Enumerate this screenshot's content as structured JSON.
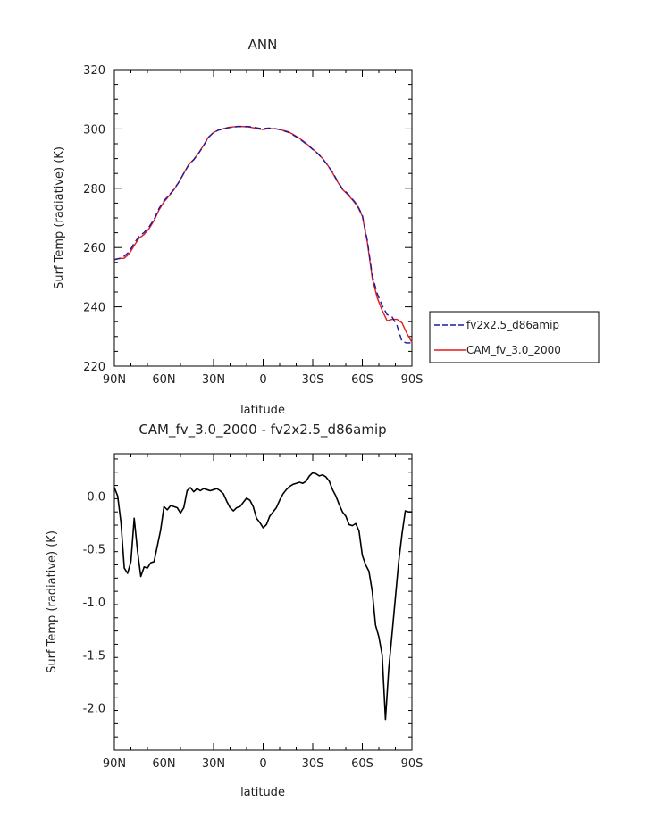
{
  "chart_data": [
    {
      "type": "line",
      "title": "ANN",
      "xlabel": "latitude",
      "ylabel": "Surf Temp (radiative) (K)",
      "x_ticks": [
        "90N",
        "60N",
        "30N",
        "0",
        "30S",
        "60S",
        "90S"
      ],
      "x": [
        -90,
        -87,
        -84,
        -81,
        -78,
        -75,
        -72,
        -69,
        -66,
        -63,
        -60,
        -57,
        -54,
        -51,
        -48,
        -45,
        -42,
        -39,
        -36,
        -33,
        -30,
        -27,
        -24,
        -21,
        -18,
        -15,
        -12,
        -9,
        -6,
        -3,
        0,
        3,
        6,
        9,
        12,
        15,
        18,
        21,
        24,
        27,
        30,
        33,
        36,
        39,
        42,
        45,
        48,
        51,
        54,
        57,
        60,
        63,
        66,
        69,
        72,
        75,
        78,
        81,
        84,
        87,
        90
      ],
      "ylim": [
        220,
        320
      ],
      "y_ticks": [
        220,
        240,
        260,
        280,
        300,
        320
      ],
      "legend_position": "right",
      "series": [
        {
          "name": "fv2x2.5_d86amip",
          "color": "#1a1aa0",
          "dash": true,
          "values": [
            255.9,
            256.3,
            257.1,
            258.6,
            261.5,
            263.8,
            265.1,
            267.0,
            269.5,
            273.2,
            275.8,
            277.6,
            279.6,
            282.1,
            285.0,
            287.9,
            289.6,
            291.8,
            294.4,
            297.2,
            298.8,
            299.6,
            300.0,
            300.4,
            300.6,
            300.8,
            300.8,
            300.8,
            300.6,
            300.3,
            300.1,
            300.3,
            300.2,
            299.9,
            299.4,
            298.9,
            298.0,
            297.0,
            295.8,
            294.5,
            293.1,
            291.7,
            289.9,
            287.8,
            285.4,
            282.4,
            279.8,
            278.3,
            276.4,
            274.3,
            270.9,
            262.5,
            250.7,
            244.5,
            240.4,
            237.4,
            236.6,
            233.7,
            228.3,
            227.8,
            227.9
          ]
        },
        {
          "name": "CAM_fv_3.0_2000",
          "color": "#e41a1a",
          "dash": false,
          "values": [
            256.0,
            256.3,
            256.4,
            257.9,
            260.7,
            263.2,
            264.4,
            266.4,
            269.1,
            272.7,
            275.4,
            277.4,
            279.5,
            282.0,
            285.1,
            288.0,
            289.7,
            291.9,
            294.5,
            297.3,
            298.8,
            299.6,
            300.1,
            300.5,
            300.7,
            300.9,
            300.8,
            300.7,
            300.4,
            300.0,
            299.8,
            300.1,
            300.1,
            299.9,
            299.5,
            299.1,
            298.2,
            297.2,
            296.0,
            294.7,
            293.2,
            291.8,
            290.0,
            287.8,
            285.2,
            282.2,
            279.6,
            278.0,
            276.1,
            274.0,
            270.6,
            261.9,
            249.7,
            243.1,
            238.8,
            235.3,
            235.8,
            235.8,
            234.6,
            231.0,
            228.0
          ]
        }
      ]
    },
    {
      "type": "line",
      "title": "CAM_fv_3.0_2000 - fv2x2.5_d86amip",
      "xlabel": "latitude",
      "ylabel": "Surf Temp (radiative) (K)",
      "x_ticks": [
        "90N",
        "60N",
        "30N",
        "0",
        "30S",
        "60S",
        "90S"
      ],
      "x": [
        -90,
        -88,
        -86,
        -84,
        -82,
        -80,
        -78,
        -76,
        -74,
        -72,
        -70,
        -68,
        -66,
        -64,
        -62,
        -60,
        -58,
        -56,
        -54,
        -52,
        -50,
        -48,
        -46,
        -44,
        -42,
        -40,
        -38,
        -36,
        -34,
        -32,
        -30,
        -28,
        -26,
        -24,
        -22,
        -20,
        -18,
        -16,
        -14,
        -12,
        -10,
        -8,
        -6,
        -4,
        -2,
        0,
        2,
        4,
        6,
        8,
        10,
        12,
        14,
        16,
        18,
        20,
        22,
        24,
        26,
        28,
        30,
        32,
        34,
        36,
        38,
        40,
        42,
        44,
        46,
        48,
        50,
        52,
        54,
        56,
        58,
        60,
        62,
        64,
        66,
        68,
        70,
        72,
        74,
        76,
        78,
        80,
        82,
        84,
        86,
        88,
        90
      ],
      "ylim": [
        -2.4,
        0.4
      ],
      "y_ticks": [
        -2.0,
        -1.5,
        -1.0,
        -0.5,
        0.0
      ],
      "y_tick_labels": [
        "-2.0",
        "-1.5",
        "-1.0",
        "-0.5",
        "0.0"
      ],
      "series": [
        {
          "name": "",
          "color": "#000000",
          "dash": false,
          "values": [
            0.08,
            0.0,
            -0.25,
            -0.68,
            -0.73,
            -0.62,
            -0.21,
            -0.52,
            -0.76,
            -0.67,
            -0.68,
            -0.63,
            -0.62,
            -0.47,
            -0.32,
            -0.1,
            -0.13,
            -0.09,
            -0.1,
            -0.11,
            -0.16,
            -0.11,
            0.05,
            0.08,
            0.04,
            0.07,
            0.05,
            0.07,
            0.06,
            0.05,
            0.06,
            0.07,
            0.05,
            0.02,
            -0.05,
            -0.11,
            -0.14,
            -0.11,
            -0.1,
            -0.06,
            -0.02,
            -0.04,
            -0.1,
            -0.21,
            -0.25,
            -0.3,
            -0.27,
            -0.19,
            -0.15,
            -0.11,
            -0.04,
            0.02,
            0.06,
            0.09,
            0.11,
            0.12,
            0.13,
            0.12,
            0.14,
            0.19,
            0.22,
            0.21,
            0.19,
            0.2,
            0.18,
            0.14,
            0.06,
            0.0,
            -0.08,
            -0.15,
            -0.19,
            -0.27,
            -0.28,
            -0.26,
            -0.33,
            -0.56,
            -0.65,
            -0.71,
            -0.9,
            -1.22,
            -1.33,
            -1.5,
            -2.11,
            -1.63,
            -1.3,
            -0.96,
            -0.62,
            -0.36,
            -0.14,
            -0.15,
            -0.15
          ]
        }
      ]
    }
  ]
}
